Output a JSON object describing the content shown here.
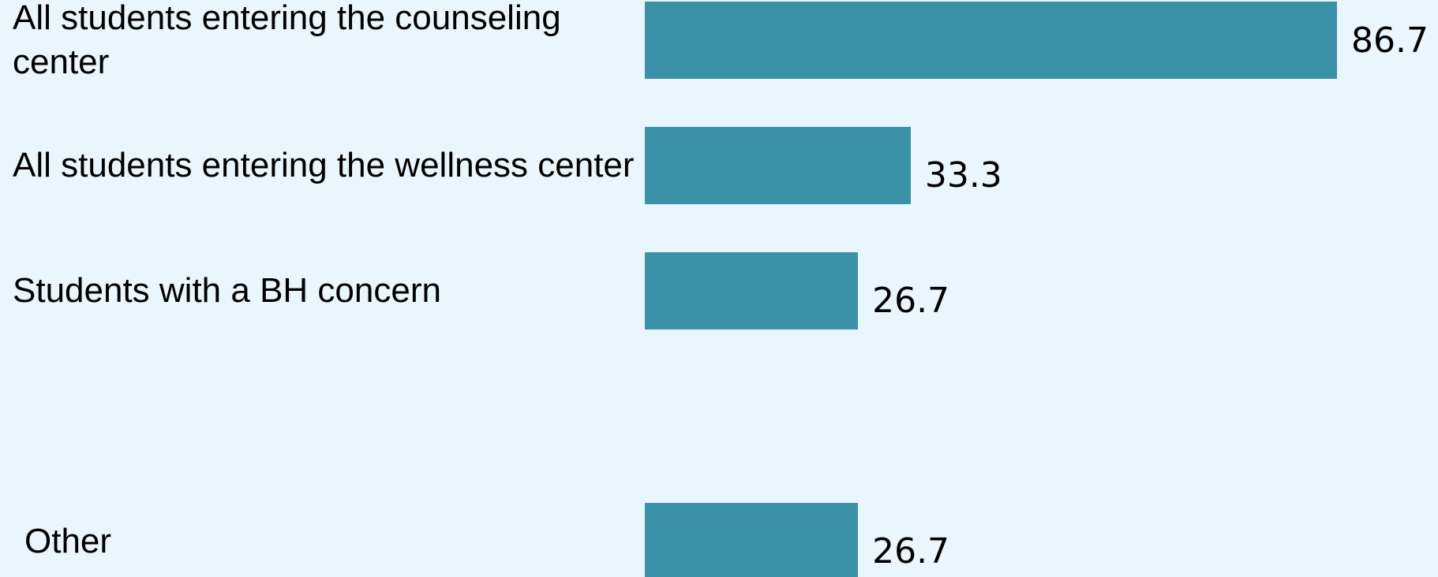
{
  "chart_data": {
    "type": "bar",
    "orientation": "horizontal",
    "categories": [
      "All students entering the counseling center",
      "All students entering the wellness center",
      "Students with a BH concern",
      null,
      "Other"
    ],
    "values": [
      86.7,
      33.3,
      26.7,
      null,
      26.7
    ],
    "color": "#3a91a8"
  }
}
